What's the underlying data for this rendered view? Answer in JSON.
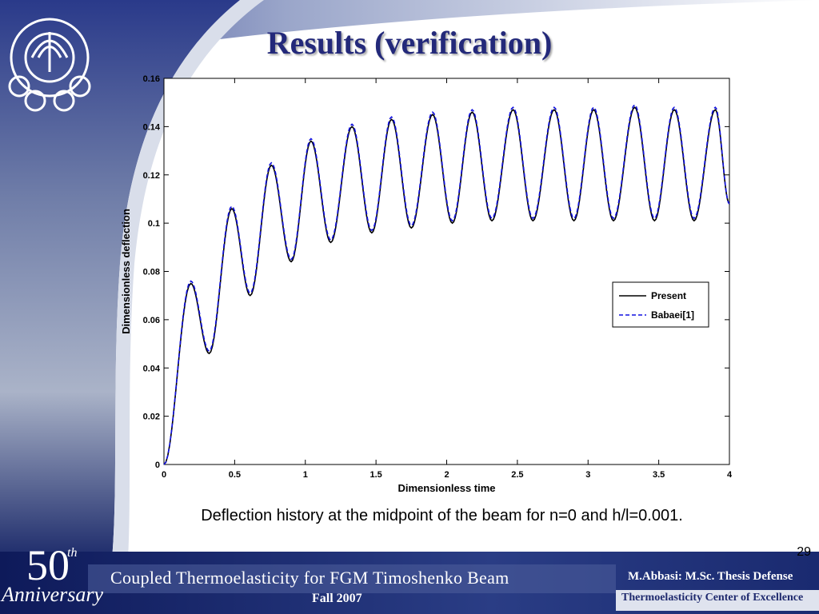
{
  "slide": {
    "title": "Results (verification)",
    "caption": "Deflection history at  the midpoint of the beam for n=0 and h/l=0.001.",
    "page_number": "29"
  },
  "footer": {
    "anniversary_number": "50",
    "anniversary_suffix": "th",
    "anniversary_word": "Anniversary",
    "title": "Coupled Thermoelasticity for FGM Timoshenko Beam",
    "term": "Fall 2007",
    "author": "M.Abbasi: M.Sc. Thesis Defense",
    "center": "Thermoelasticity Center of Excellence"
  },
  "colors": {
    "title": "#23297a",
    "present": "#000000",
    "babaei": "#1010e0"
  },
  "chart_data": {
    "type": "line",
    "xlabel": "Dimensionless time",
    "ylabel": "Dimensionless deflection",
    "xlim": [
      0,
      4
    ],
    "ylim": [
      0,
      0.16
    ],
    "xticks": [
      "0",
      "0.5",
      "1",
      "1.5",
      "2",
      "2.5",
      "3",
      "3.5",
      "4"
    ],
    "yticks": [
      "0",
      "0.02",
      "0.04",
      "0.06",
      "0.08",
      "0.1",
      "0.12",
      "0.14",
      "0.16"
    ],
    "grid": false,
    "legend_position": "right",
    "series": [
      {
        "name": "Present",
        "style": "solid",
        "x": [
          0,
          0.19,
          0.32,
          0.48,
          0.61,
          0.76,
          0.9,
          1.04,
          1.18,
          1.33,
          1.47,
          1.61,
          1.75,
          1.9,
          2.04,
          2.18,
          2.32,
          2.47,
          2.61,
          2.76,
          2.9,
          3.04,
          3.18,
          3.33,
          3.47,
          3.61,
          3.75,
          3.9,
          4.0
        ],
        "y": [
          0,
          0.075,
          0.046,
          0.106,
          0.07,
          0.124,
          0.084,
          0.134,
          0.092,
          0.14,
          0.096,
          0.143,
          0.098,
          0.145,
          0.1,
          0.146,
          0.101,
          0.147,
          0.101,
          0.147,
          0.101,
          0.147,
          0.101,
          0.148,
          0.101,
          0.147,
          0.101,
          0.147,
          0.108
        ]
      },
      {
        "name": "Babaei[1]",
        "style": "dashed",
        "x": [
          0,
          0.19,
          0.32,
          0.48,
          0.61,
          0.76,
          0.9,
          1.04,
          1.18,
          1.33,
          1.47,
          1.61,
          1.75,
          1.9,
          2.04,
          2.18,
          2.32,
          2.47,
          2.61,
          2.76,
          2.9,
          3.04,
          3.18,
          3.33,
          3.47,
          3.61,
          3.75,
          3.9,
          4.0
        ],
        "y": [
          0,
          0.076,
          0.047,
          0.107,
          0.071,
          0.125,
          0.085,
          0.135,
          0.093,
          0.141,
          0.097,
          0.144,
          0.099,
          0.146,
          0.101,
          0.147,
          0.102,
          0.148,
          0.102,
          0.148,
          0.102,
          0.148,
          0.102,
          0.149,
          0.102,
          0.148,
          0.102,
          0.148,
          0.108
        ]
      }
    ]
  }
}
